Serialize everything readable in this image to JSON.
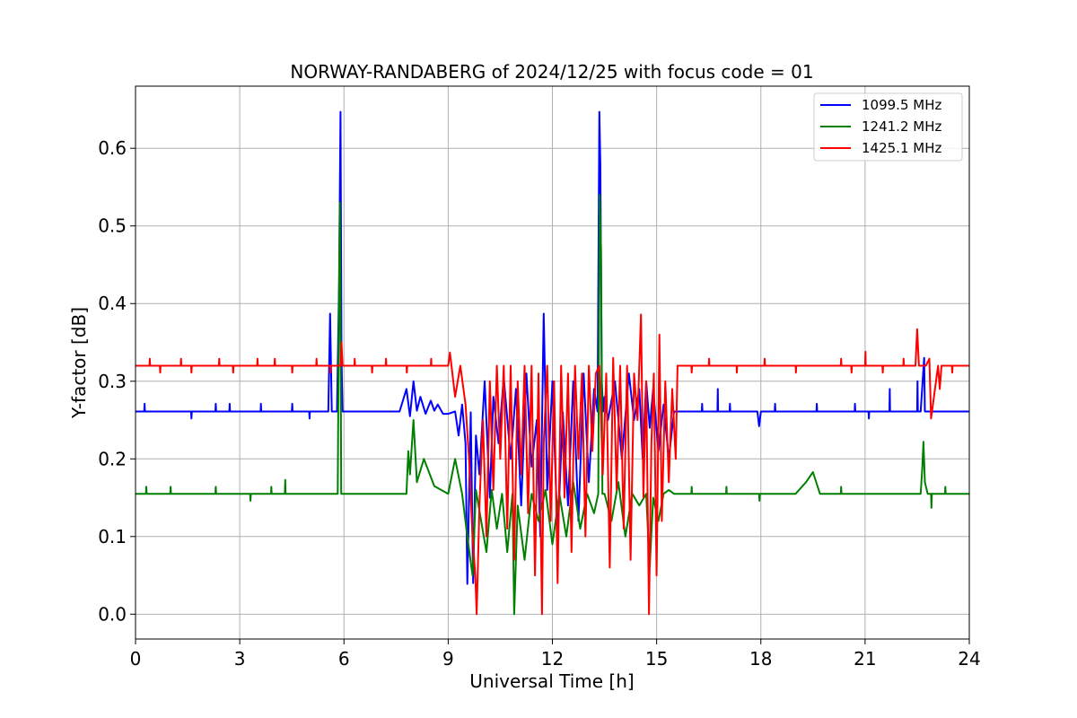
{
  "chart_data": {
    "type": "line",
    "title": "NORWAY-RANDABERG of 2024/12/25 with focus code = 01",
    "xlabel": "Universal Time [h]",
    "ylabel": "Y-factor [dB]",
    "xlim": [
      0,
      24
    ],
    "ylim": [
      -0.032,
      0.68
    ],
    "xticks": [
      0,
      3,
      6,
      9,
      12,
      15,
      18,
      21,
      24
    ],
    "yticks": [
      0.0,
      0.1,
      0.2,
      0.3,
      0.4,
      0.5,
      0.6
    ],
    "ytick_labels": [
      "0.0",
      "0.1",
      "0.2",
      "0.3",
      "0.4",
      "0.5",
      "0.6"
    ],
    "grid": true,
    "legend_position": "top-right",
    "series": [
      {
        "name": "1099.5 MHz",
        "color": "#0000ff",
        "baseline": 0.261,
        "x": [
          0,
          0.25,
          0.26,
          0.27,
          1.6,
          1.61,
          1.62,
          2.3,
          2.31,
          2.32,
          2.7,
          2.71,
          2.72,
          3.6,
          3.61,
          3.62,
          4.5,
          4.51,
          4.52,
          5.0,
          5.01,
          5.02,
          5.55,
          5.6,
          5.65,
          5.72,
          5.8,
          5.86,
          5.9,
          5.93,
          5.96,
          6.0,
          6.1,
          6.3,
          6.6,
          7.0,
          7.3,
          7.6,
          7.8,
          7.9,
          8.0,
          8.1,
          8.2,
          8.35,
          8.5,
          8.6,
          8.7,
          8.85,
          9.0,
          9.2,
          9.3,
          9.4,
          9.5,
          9.55,
          9.65,
          9.72,
          9.8,
          9.9,
          10.05,
          10.2,
          10.3,
          10.45,
          10.6,
          10.8,
          10.95,
          11.1,
          11.25,
          11.4,
          11.55,
          11.65,
          11.75,
          11.85,
          12.0,
          12.15,
          12.3,
          12.45,
          12.6,
          12.75,
          12.9,
          13.05,
          13.2,
          13.3,
          13.35,
          13.38,
          13.42,
          13.46,
          13.5,
          13.6,
          13.8,
          14.0,
          14.2,
          14.35,
          14.5,
          14.6,
          14.7,
          14.8,
          14.9,
          15.05,
          15.2,
          15.35,
          15.5,
          15.7,
          16.3,
          16.31,
          16.32,
          16.75,
          16.76,
          16.77,
          17.1,
          17.11,
          17.12,
          17.9,
          17.95,
          18.0,
          18.4,
          18.41,
          18.42,
          19.6,
          19.61,
          19.62,
          20.7,
          20.71,
          20.72,
          21.1,
          21.11,
          21.12,
          21.7,
          21.71,
          21.72,
          22.5,
          22.51,
          22.52,
          22.6,
          22.7,
          22.72,
          22.75,
          22.9,
          23.0,
          24.0
        ],
        "y": [
          0.261,
          0.261,
          0.271,
          0.261,
          0.261,
          0.252,
          0.261,
          0.261,
          0.271,
          0.261,
          0.261,
          0.271,
          0.261,
          0.261,
          0.271,
          0.261,
          0.261,
          0.271,
          0.261,
          0.261,
          0.252,
          0.261,
          0.261,
          0.387,
          0.261,
          0.261,
          0.261,
          0.425,
          0.647,
          0.33,
          0.261,
          0.261,
          0.261,
          0.261,
          0.261,
          0.261,
          0.261,
          0.261,
          0.29,
          0.255,
          0.3,
          0.262,
          0.28,
          0.258,
          0.275,
          0.262,
          0.27,
          0.258,
          0.258,
          0.261,
          0.23,
          0.27,
          0.22,
          0.039,
          0.26,
          0.04,
          0.23,
          0.18,
          0.3,
          0.15,
          0.28,
          0.22,
          0.305,
          0.2,
          0.29,
          0.14,
          0.31,
          0.19,
          0.25,
          0.1,
          0.387,
          0.16,
          0.3,
          0.1,
          0.26,
          0.14,
          0.3,
          0.12,
          0.31,
          0.17,
          0.29,
          0.261,
          0.647,
          0.58,
          0.3,
          0.261,
          0.28,
          0.25,
          0.3,
          0.2,
          0.31,
          0.25,
          0.29,
          0.2,
          0.3,
          0.24,
          0.29,
          0.21,
          0.27,
          0.2,
          0.261,
          0.261,
          0.261,
          0.271,
          0.261,
          0.261,
          0.29,
          0.261,
          0.261,
          0.271,
          0.261,
          0.261,
          0.242,
          0.261,
          0.261,
          0.271,
          0.261,
          0.261,
          0.271,
          0.261,
          0.261,
          0.271,
          0.261,
          0.261,
          0.252,
          0.261,
          0.261,
          0.29,
          0.261,
          0.261,
          0.3,
          0.261,
          0.261,
          0.33,
          0.261,
          0.261,
          0.261,
          0.261,
          0.261
        ]
      },
      {
        "name": "1241.2 MHz",
        "color": "#008000",
        "baseline": 0.155,
        "x": [
          0,
          0.3,
          0.31,
          0.32,
          1.0,
          1.01,
          1.02,
          2.3,
          2.31,
          2.32,
          3.3,
          3.31,
          3.32,
          3.9,
          3.91,
          3.92,
          4.3,
          4.31,
          4.32,
          5.8,
          5.82,
          5.85,
          5.88,
          5.9,
          5.92,
          5.95,
          6.0,
          6.2,
          7.0,
          7.5,
          7.8,
          7.85,
          7.9,
          8.0,
          8.1,
          8.3,
          8.6,
          9.0,
          9.2,
          9.4,
          9.55,
          9.7,
          9.8,
          9.95,
          10.1,
          10.25,
          10.4,
          10.55,
          10.7,
          10.85,
          10.9,
          11.0,
          11.2,
          11.4,
          11.6,
          11.8,
          12.0,
          12.2,
          12.4,
          12.6,
          12.8,
          13.0,
          13.2,
          13.32,
          13.36,
          13.4,
          13.44,
          13.5,
          13.7,
          13.9,
          14.1,
          14.3,
          14.5,
          14.7,
          14.8,
          14.9,
          15.05,
          15.2,
          15.35,
          15.5,
          16.0,
          16.01,
          16.02,
          17.0,
          17.01,
          17.02,
          17.95,
          17.96,
          17.97,
          19.0,
          19.3,
          19.5,
          19.7,
          20.3,
          20.31,
          20.32,
          22.6,
          22.65,
          22.68,
          22.72,
          22.8,
          22.9,
          22.91,
          22.92,
          23.3,
          23.31,
          23.32,
          24.0
        ],
        "y": [
          0.155,
          0.155,
          0.164,
          0.155,
          0.155,
          0.164,
          0.155,
          0.155,
          0.164,
          0.155,
          0.155,
          0.146,
          0.155,
          0.155,
          0.164,
          0.155,
          0.155,
          0.173,
          0.155,
          0.155,
          0.155,
          0.36,
          0.53,
          0.38,
          0.155,
          0.155,
          0.155,
          0.155,
          0.155,
          0.155,
          0.155,
          0.21,
          0.18,
          0.25,
          0.17,
          0.2,
          0.165,
          0.155,
          0.2,
          0.155,
          0.1,
          0.05,
          0.16,
          0.12,
          0.08,
          0.16,
          0.11,
          0.155,
          0.08,
          0.155,
          0.0,
          0.14,
          0.07,
          0.155,
          0.12,
          0.16,
          0.09,
          0.155,
          0.1,
          0.17,
          0.11,
          0.155,
          0.13,
          0.155,
          0.54,
          0.47,
          0.155,
          0.155,
          0.12,
          0.17,
          0.1,
          0.155,
          0.14,
          0.155,
          0.06,
          0.15,
          0.12,
          0.155,
          0.16,
          0.155,
          0.155,
          0.164,
          0.155,
          0.155,
          0.164,
          0.155,
          0.155,
          0.146,
          0.155,
          0.155,
          0.17,
          0.183,
          0.155,
          0.155,
          0.164,
          0.155,
          0.155,
          0.19,
          0.222,
          0.17,
          0.155,
          0.155,
          0.137,
          0.155,
          0.155,
          0.164,
          0.155,
          0.155
        ]
      },
      {
        "name": "1425.1 MHz",
        "color": "#ff0000",
        "baseline": 0.32,
        "x": [
          0,
          0.4,
          0.41,
          0.42,
          0.7,
          0.71,
          0.72,
          1.3,
          1.31,
          1.32,
          1.6,
          1.61,
          1.62,
          2.4,
          2.41,
          2.42,
          2.8,
          2.81,
          2.82,
          3.5,
          3.51,
          3.52,
          4.0,
          4.01,
          4.02,
          4.5,
          4.51,
          4.52,
          5.2,
          5.21,
          5.22,
          5.6,
          5.61,
          5.62,
          5.9,
          5.93,
          5.96,
          6.3,
          6.31,
          6.32,
          6.8,
          6.81,
          6.82,
          7.2,
          7.21,
          7.22,
          7.8,
          7.81,
          7.82,
          8.5,
          8.51,
          8.52,
          9.0,
          9.05,
          9.2,
          9.35,
          9.5,
          9.6,
          9.7,
          9.78,
          9.82,
          9.9,
          10.0,
          10.1,
          10.2,
          10.3,
          10.4,
          10.5,
          10.6,
          10.7,
          10.8,
          10.9,
          11.0,
          11.1,
          11.2,
          11.3,
          11.4,
          11.5,
          11.6,
          11.7,
          11.75,
          11.85,
          11.95,
          12.05,
          12.15,
          12.25,
          12.35,
          12.45,
          12.55,
          12.65,
          12.75,
          12.85,
          12.95,
          13.05,
          13.15,
          13.25,
          13.35,
          13.45,
          13.55,
          13.65,
          13.75,
          13.85,
          13.95,
          14.05,
          14.15,
          14.25,
          14.35,
          14.45,
          14.55,
          14.62,
          14.7,
          14.78,
          14.85,
          14.92,
          15.0,
          15.08,
          15.15,
          15.25,
          15.35,
          15.45,
          15.55,
          15.6,
          16.0,
          16.01,
          16.02,
          16.5,
          16.51,
          16.52,
          17.3,
          17.31,
          17.32,
          18.1,
          18.11,
          18.12,
          19.0,
          19.01,
          19.02,
          20.3,
          20.31,
          20.32,
          20.6,
          20.61,
          20.62,
          21.0,
          21.01,
          21.02,
          21.5,
          21.51,
          21.52,
          22.1,
          22.11,
          22.12,
          22.45,
          22.5,
          22.55,
          22.75,
          22.85,
          22.9,
          23.1,
          23.15,
          23.2,
          23.5,
          23.51,
          23.52,
          24.0
        ],
        "y": [
          0.32,
          0.32,
          0.329,
          0.32,
          0.32,
          0.311,
          0.32,
          0.32,
          0.329,
          0.32,
          0.32,
          0.311,
          0.32,
          0.32,
          0.329,
          0.32,
          0.32,
          0.311,
          0.32,
          0.32,
          0.329,
          0.32,
          0.32,
          0.329,
          0.32,
          0.32,
          0.311,
          0.32,
          0.32,
          0.329,
          0.32,
          0.32,
          0.311,
          0.32,
          0.32,
          0.35,
          0.32,
          0.32,
          0.329,
          0.32,
          0.32,
          0.311,
          0.32,
          0.32,
          0.329,
          0.32,
          0.32,
          0.311,
          0.32,
          0.32,
          0.329,
          0.32,
          0.32,
          0.337,
          0.28,
          0.32,
          0.27,
          0.2,
          0.1,
          0.05,
          0.0,
          0.14,
          0.25,
          0.1,
          0.3,
          0.16,
          0.32,
          0.2,
          0.32,
          0.11,
          0.32,
          0.07,
          0.3,
          0.18,
          0.32,
          0.13,
          0.32,
          0.05,
          0.31,
          0.0,
          0.22,
          0.32,
          0.12,
          0.3,
          0.04,
          0.32,
          0.15,
          0.31,
          0.08,
          0.32,
          0.2,
          0.31,
          0.1,
          0.32,
          0.21,
          0.31,
          0.32,
          0.18,
          0.31,
          0.06,
          0.33,
          0.16,
          0.32,
          0.11,
          0.32,
          0.07,
          0.31,
          0.25,
          0.386,
          0.15,
          0.3,
          0.0,
          0.22,
          0.31,
          0.05,
          0.36,
          0.12,
          0.3,
          0.17,
          0.29,
          0.2,
          0.32,
          0.32,
          0.311,
          0.32,
          0.32,
          0.329,
          0.32,
          0.32,
          0.311,
          0.32,
          0.32,
          0.329,
          0.32,
          0.32,
          0.311,
          0.32,
          0.32,
          0.329,
          0.32,
          0.32,
          0.311,
          0.32,
          0.32,
          0.338,
          0.32,
          0.32,
          0.311,
          0.32,
          0.32,
          0.329,
          0.32,
          0.32,
          0.367,
          0.32,
          0.32,
          0.329,
          0.252,
          0.32,
          0.29,
          0.32,
          0.32,
          0.311,
          0.32,
          0.32
        ]
      }
    ]
  }
}
